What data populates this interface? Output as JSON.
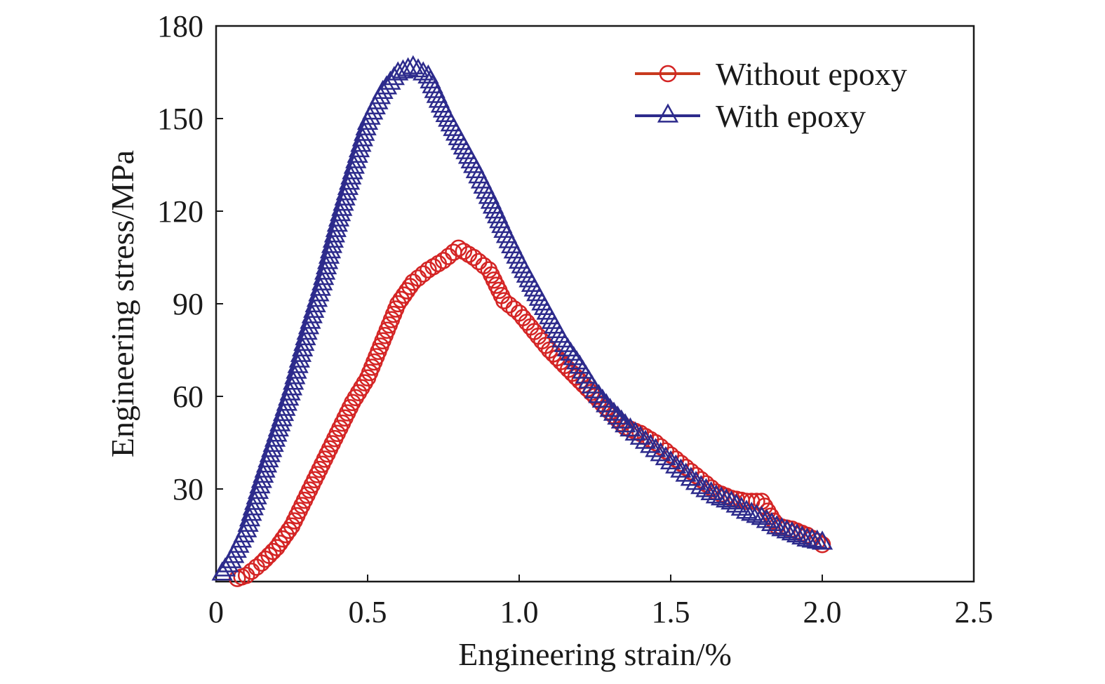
{
  "chart_data": {
    "type": "scatter",
    "xlabel": "Engineering strain/%",
    "ylabel": "Engineering stress/MPa",
    "xlim": [
      0,
      2.5
    ],
    "ylim": [
      0,
      180
    ],
    "xticks": [
      0,
      0.5,
      1.0,
      1.5,
      2.0,
      2.5
    ],
    "xtick_labels": [
      "0",
      "0.5",
      "1.0",
      "1.5",
      "2.0",
      "2.5"
    ],
    "yticks": [
      30,
      60,
      90,
      120,
      150,
      180
    ],
    "ytick_labels": [
      "30",
      "60",
      "90",
      "120",
      "150",
      "180"
    ],
    "grid": false,
    "legend_position": "top-right",
    "series": [
      {
        "name": "Without epoxy",
        "marker": "circle",
        "color": "#d42424",
        "line_color": "#c83a1e",
        "x": [
          0.07,
          0.1,
          0.15,
          0.2,
          0.25,
          0.3,
          0.35,
          0.4,
          0.45,
          0.5,
          0.55,
          0.6,
          0.65,
          0.7,
          0.75,
          0.8,
          0.85,
          0.9,
          0.95,
          1.0,
          1.05,
          1.1,
          1.15,
          1.2,
          1.25,
          1.3,
          1.35,
          1.4,
          1.45,
          1.5,
          1.55,
          1.6,
          1.65,
          1.7,
          1.75,
          1.8,
          1.85,
          1.9,
          1.95,
          2.0
        ],
        "y": [
          1,
          2,
          6,
          11,
          18,
          28,
          38,
          48,
          58,
          66,
          78,
          90,
          97,
          101,
          104,
          108,
          105,
          101,
          91,
          87,
          81,
          75,
          70,
          65,
          60,
          55,
          50,
          48,
          45,
          41,
          37,
          33,
          29,
          27,
          26,
          26,
          18,
          17,
          15,
          12
        ]
      },
      {
        "name": "With epoxy",
        "marker": "triangle",
        "color": "#2d2b8c",
        "line_color": "#2d2b8c",
        "x": [
          0.02,
          0.05,
          0.1,
          0.15,
          0.2,
          0.25,
          0.3,
          0.35,
          0.4,
          0.45,
          0.5,
          0.55,
          0.6,
          0.65,
          0.7,
          0.75,
          0.8,
          0.85,
          0.9,
          0.95,
          1.0,
          1.05,
          1.1,
          1.15,
          1.2,
          1.25,
          1.3,
          1.35,
          1.4,
          1.45,
          1.5,
          1.55,
          1.6,
          1.65,
          1.7,
          1.75,
          1.8,
          1.85,
          1.9,
          1.95,
          2.0
        ],
        "y": [
          3,
          7,
          17,
          33,
          48,
          63,
          81,
          97,
          116,
          133,
          149,
          159,
          165,
          167,
          164,
          153,
          144,
          135,
          125,
          114,
          104,
          95,
          86,
          77,
          70,
          62,
          56,
          51,
          47,
          43,
          39,
          35,
          31,
          28,
          26,
          23,
          21,
          18,
          16,
          14,
          13
        ]
      }
    ]
  }
}
